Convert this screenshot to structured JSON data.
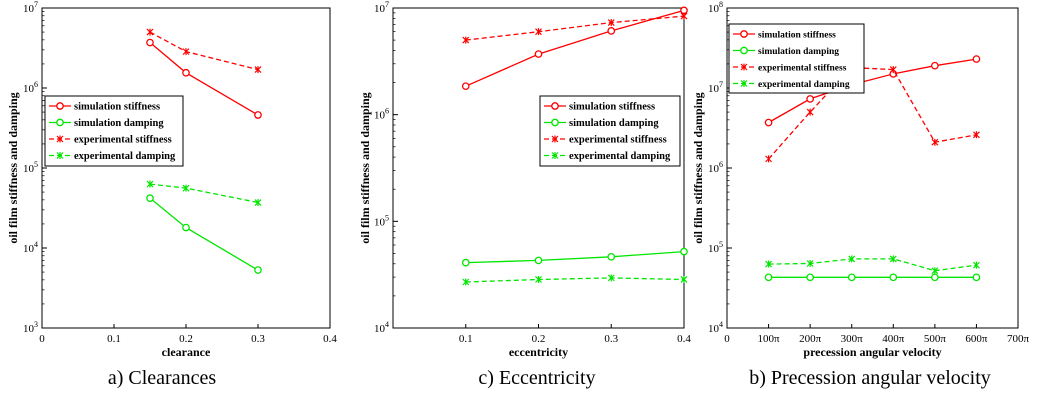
{
  "chart_data": [
    {
      "type": "line",
      "caption": "a) Clearances",
      "xlabel": "clearance",
      "ylabel": "oil film stiffness and damping",
      "yscale": "log",
      "xlim": [
        0,
        0.4
      ],
      "ylim": [
        1000,
        10000000
      ],
      "xticks": [
        0,
        0.1,
        0.2,
        0.3,
        0.4
      ],
      "xtick_labels": [
        "0",
        "0.1",
        "0.2",
        "0.3",
        "0.4"
      ],
      "yticks": [
        1000,
        10000,
        100000,
        1000000,
        10000000
      ],
      "ytick_labels": [
        [
          "10",
          "3"
        ],
        [
          "10",
          "4"
        ],
        [
          "10",
          "5"
        ],
        [
          "10",
          "6"
        ],
        [
          "10",
          "7"
        ]
      ],
      "grid": false,
      "legend_position": "middle-left",
      "x": [
        0.15,
        0.2,
        0.3
      ],
      "series": [
        {
          "name": "simulation stiffness",
          "values": [
            3700000,
            1550000,
            460000
          ],
          "color": "#ff0000",
          "dash": "solid",
          "marker": "circle"
        },
        {
          "name": "simulation damping",
          "values": [
            42000,
            18000,
            5300
          ],
          "color": "#00e600",
          "dash": "solid",
          "marker": "circle"
        },
        {
          "name": "experimental stiffness",
          "values": [
            5000000,
            2850000,
            1700000
          ],
          "color": "#ff0000",
          "dash": "dashed",
          "marker": "star"
        },
        {
          "name": "experimental damping",
          "values": [
            63000,
            56000,
            37000
          ],
          "color": "#00e600",
          "dash": "dashed",
          "marker": "star"
        }
      ]
    },
    {
      "type": "line",
      "caption": "c) Eccentricity",
      "xlabel": "eccentricity",
      "ylabel": "oil film stiffness and damping",
      "yscale": "log",
      "xlim": [
        0,
        0.4
      ],
      "ylim": [
        10000,
        10000000
      ],
      "xticks": [
        0.1,
        0.2,
        0.3,
        0.4
      ],
      "xtick_labels": [
        "0.1",
        "0.2",
        "0.3",
        "0.4"
      ],
      "yticks": [
        10000,
        100000,
        1000000,
        10000000
      ],
      "ytick_labels": [
        [
          "10",
          "4"
        ],
        [
          "10",
          "5"
        ],
        [
          "10",
          "6"
        ],
        [
          "10",
          "7"
        ]
      ],
      "grid": false,
      "legend_position": "middle-right",
      "x": [
        0.1,
        0.2,
        0.3,
        0.4
      ],
      "series": [
        {
          "name": "simulation stiffness",
          "values": [
            1850000,
            3700000,
            6100000,
            9500000
          ],
          "color": "#ff0000",
          "dash": "solid",
          "marker": "circle"
        },
        {
          "name": "simulation damping",
          "values": [
            41000,
            43000,
            46500,
            52000
          ],
          "color": "#00e600",
          "dash": "solid",
          "marker": "circle"
        },
        {
          "name": "experimental stiffness",
          "values": [
            5000000,
            6000000,
            7300000,
            8400000
          ],
          "color": "#ff0000",
          "dash": "dashed",
          "marker": "star"
        },
        {
          "name": "experimental damping",
          "values": [
            27000,
            28500,
            29500,
            28500
          ],
          "color": "#00e600",
          "dash": "dashed",
          "marker": "star"
        }
      ]
    },
    {
      "type": "line",
      "caption": "b) Precession angular velocity",
      "xlabel": "precession angular velocity",
      "ylabel": "oil film stiffness and damping",
      "yscale": "log",
      "xlim": [
        0,
        700
      ],
      "ylim": [
        10000,
        100000000
      ],
      "xticks": [
        0,
        100,
        200,
        300,
        400,
        500,
        600,
        700
      ],
      "xtick_labels": [
        "0",
        "100π",
        "200π",
        "300π",
        "400π",
        "500π",
        "600π",
        "700π"
      ],
      "yticks": [
        10000,
        100000,
        1000000,
        10000000,
        100000000
      ],
      "ytick_labels": [
        [
          "10",
          "4"
        ],
        [
          "10",
          "5"
        ],
        [
          "10",
          "6"
        ],
        [
          "10",
          "7"
        ],
        [
          "10",
          "8"
        ]
      ],
      "grid": false,
      "legend_position": "top-left",
      "x": [
        100,
        200,
        300,
        400,
        500,
        600
      ],
      "series": [
        {
          "name": "simulation stiffness",
          "values": [
            3700000,
            7300000,
            11000000,
            15000000,
            19000000,
            23000000
          ],
          "color": "#ff0000",
          "dash": "solid",
          "marker": "circle"
        },
        {
          "name": "simulation damping",
          "values": [
            43000,
            43000,
            43000,
            43000,
            43000,
            43000
          ],
          "color": "#00e600",
          "dash": "solid",
          "marker": "circle"
        },
        {
          "name": "experimental stiffness",
          "values": [
            1300000,
            5000000,
            18000000,
            17000000,
            2100000,
            2600000
          ],
          "color": "#ff0000",
          "dash": "dashed",
          "marker": "star"
        },
        {
          "name": "experimental damping",
          "values": [
            63000,
            64000,
            73000,
            73000,
            52000,
            61000
          ],
          "color": "#00e600",
          "dash": "dashed",
          "marker": "star"
        }
      ]
    }
  ]
}
